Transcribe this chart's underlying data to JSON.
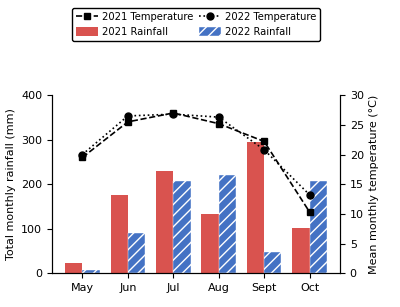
{
  "months": [
    "May",
    "Jun",
    "Jul",
    "Aug",
    "Sept",
    "Oct"
  ],
  "rainfall_2021": [
    22,
    175,
    230,
    132,
    295,
    102
  ],
  "rainfall_2022": [
    8,
    90,
    207,
    220,
    48,
    208
  ],
  "temp_2021": [
    19.5,
    25.5,
    27.0,
    25.2,
    22.2,
    10.3
  ],
  "temp_2022": [
    20.0,
    26.5,
    26.8,
    26.3,
    20.8,
    13.2
  ],
  "ylabel_left": "Total monthly rainfall (mm)",
  "ylabel_right": "Mean monthly temperature (°C)",
  "ylim_left": [
    0,
    400
  ],
  "ylim_right": [
    0,
    30
  ],
  "yticks_left": [
    0,
    100,
    200,
    300,
    400
  ],
  "yticks_right": [
    0,
    5,
    10,
    15,
    20,
    25,
    30
  ],
  "color_2021_bar": "#d9534f",
  "color_2022_bar": "#4472c4",
  "bar_width": 0.38,
  "legend_labels": [
    "2021 Temperature",
    "2022 Temperature",
    "2021 Rainfall",
    "2022 Rainfall"
  ]
}
